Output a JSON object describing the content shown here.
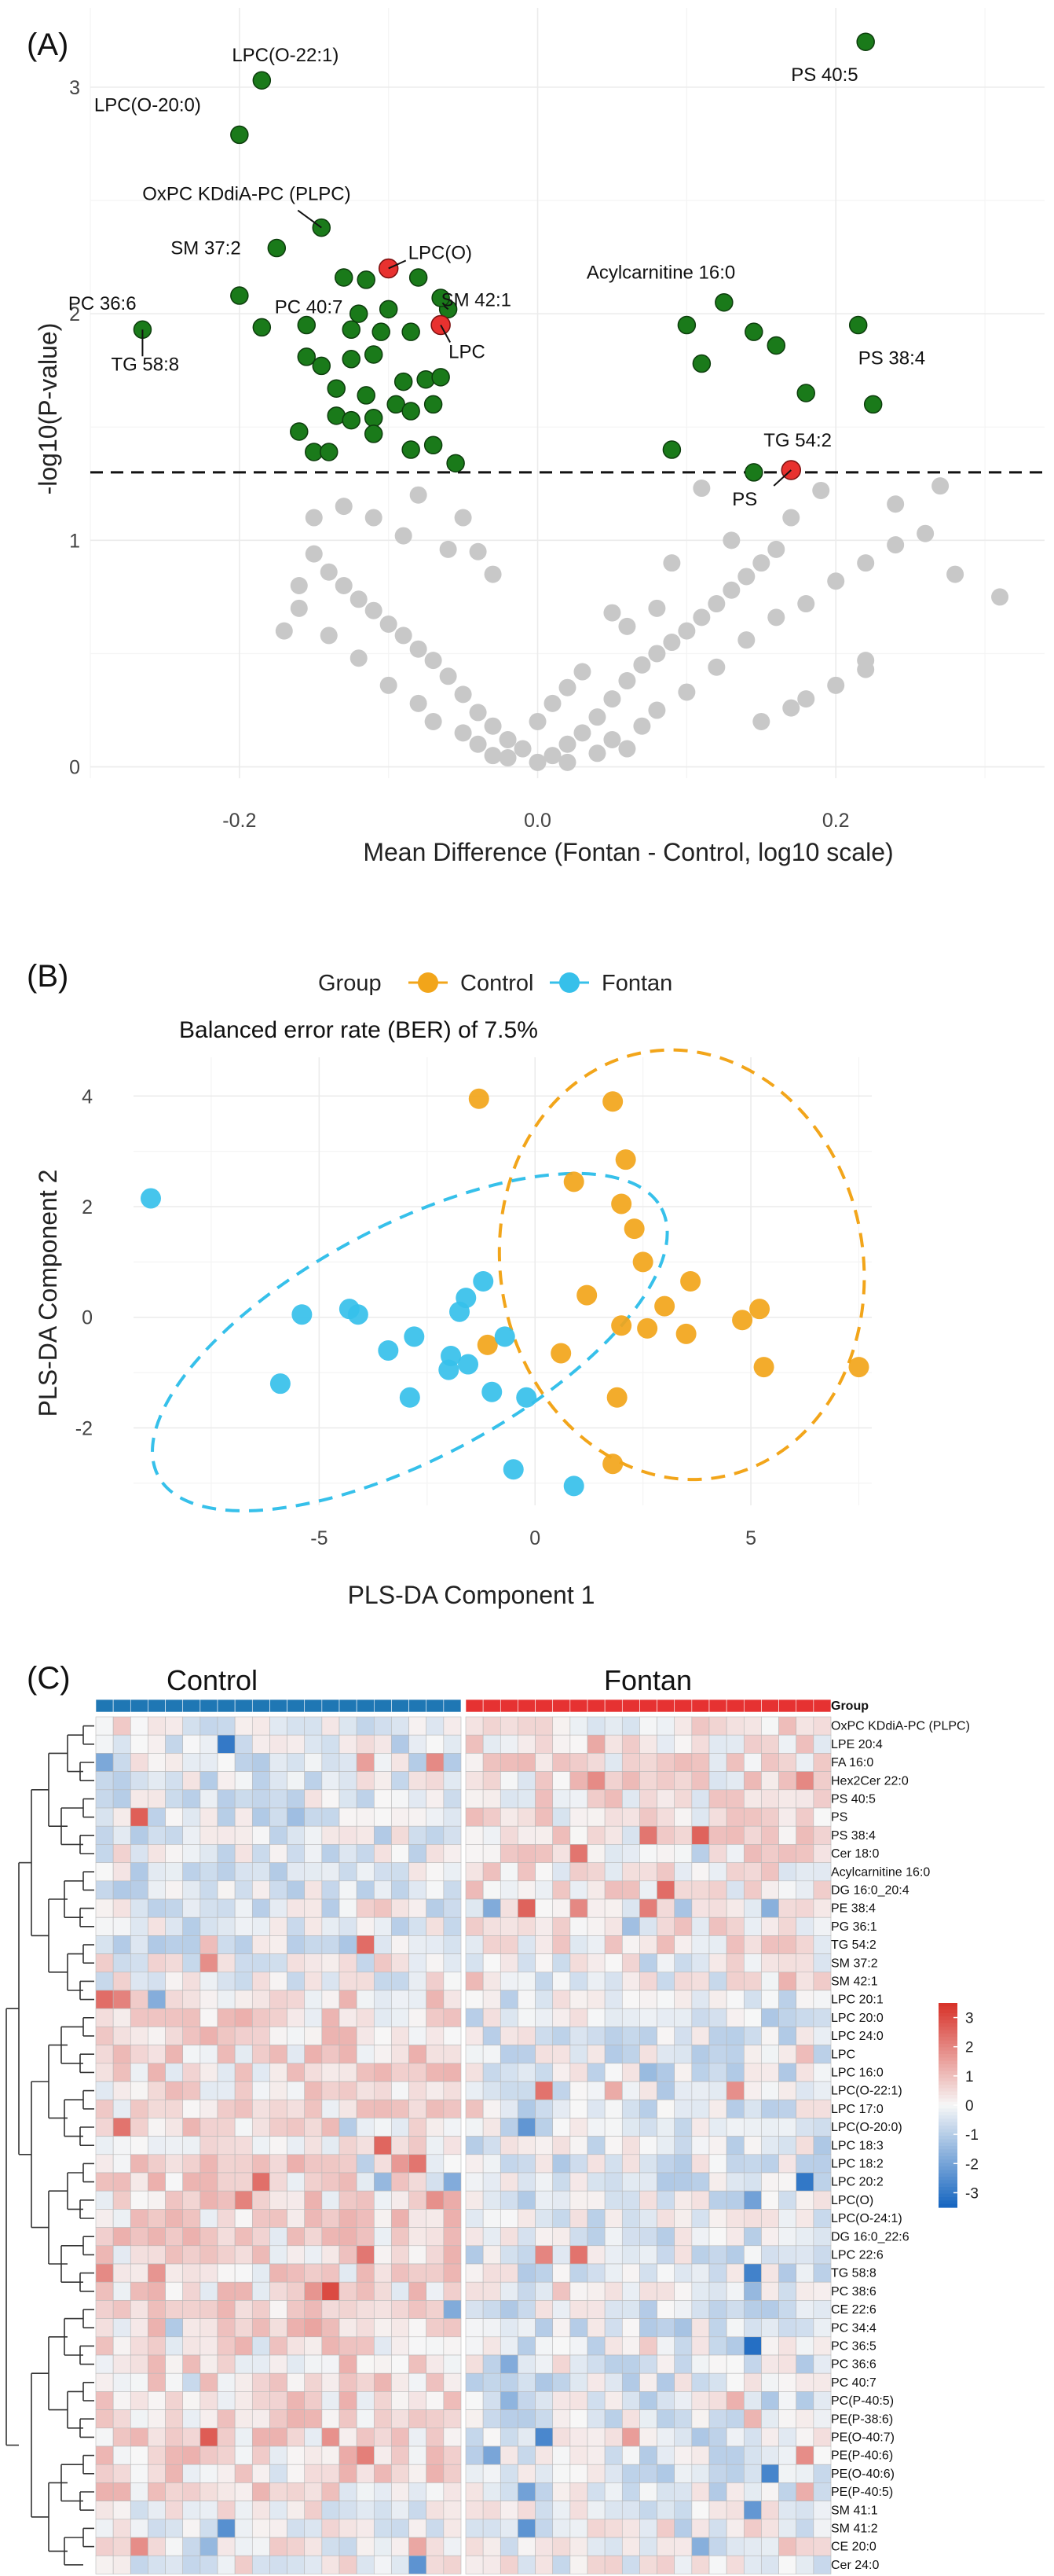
{
  "chart_data": [
    {
      "panel": "(A)",
      "type": "scatter",
      "xlabel": "Mean Difference (Fontan - Control, log10 scale)",
      "ylabel": "-log10(P-value)",
      "xlim": [
        -0.3,
        0.34
      ],
      "ylim": [
        -0.05,
        3.35
      ],
      "xticks": [
        -0.2,
        0,
        0.2
      ],
      "xtick_labels": [
        "-0.2",
        "0.0",
        "0.2"
      ],
      "yticks": [
        0,
        1,
        2,
        3
      ],
      "ytick_labels": [
        "0",
        "1",
        "2",
        "3"
      ],
      "threshold": 1.3,
      "colors": {
        "significant": "#1a7a1a",
        "highlight": "#e8312f",
        "nonsignificant": "#c8c8c8"
      },
      "significant_points": [
        [
          0.22,
          3.2
        ],
        [
          -0.185,
          3.03
        ],
        [
          -0.2,
          2.79
        ],
        [
          -0.145,
          2.38
        ],
        [
          -0.175,
          2.29
        ],
        [
          -0.2,
          2.08
        ],
        [
          -0.13,
          2.16
        ],
        [
          -0.115,
          2.15
        ],
        [
          -0.08,
          2.16
        ],
        [
          -0.1,
          2.02
        ],
        [
          -0.12,
          2.0
        ],
        [
          -0.06,
          2.02
        ],
        [
          -0.065,
          2.07
        ],
        [
          -0.265,
          1.93
        ],
        [
          -0.185,
          1.94
        ],
        [
          -0.155,
          1.95
        ],
        [
          -0.125,
          1.93
        ],
        [
          -0.105,
          1.92
        ],
        [
          -0.085,
          1.92
        ],
        [
          -0.155,
          1.81
        ],
        [
          -0.145,
          1.77
        ],
        [
          -0.125,
          1.8
        ],
        [
          -0.11,
          1.82
        ],
        [
          -0.09,
          1.7
        ],
        [
          -0.075,
          1.71
        ],
        [
          -0.065,
          1.72
        ],
        [
          -0.135,
          1.67
        ],
        [
          -0.115,
          1.64
        ],
        [
          -0.095,
          1.6
        ],
        [
          -0.085,
          1.57
        ],
        [
          -0.07,
          1.6
        ],
        [
          -0.135,
          1.55
        ],
        [
          -0.125,
          1.53
        ],
        [
          -0.11,
          1.54
        ],
        [
          -0.11,
          1.47
        ],
        [
          -0.16,
          1.48
        ],
        [
          -0.15,
          1.39
        ],
        [
          -0.14,
          1.39
        ],
        [
          -0.085,
          1.4
        ],
        [
          -0.07,
          1.42
        ],
        [
          -0.055,
          1.34
        ],
        [
          0.1,
          1.95
        ],
        [
          0.125,
          2.05
        ],
        [
          0.145,
          1.92
        ],
        [
          0.11,
          1.78
        ],
        [
          0.16,
          1.86
        ],
        [
          0.215,
          1.95
        ],
        [
          0.18,
          1.65
        ],
        [
          0.225,
          1.6
        ],
        [
          0.09,
          1.4
        ],
        [
          0.145,
          1.3
        ]
      ],
      "highlight_points": [
        [
          -0.1,
          2.2
        ],
        [
          -0.065,
          1.95
        ],
        [
          0.17,
          1.31
        ]
      ],
      "nonsignificant_points": [
        [
          0.0,
          0.02
        ],
        [
          0.01,
          0.05
        ],
        [
          -0.01,
          0.08
        ],
        [
          0.02,
          0.1
        ],
        [
          -0.02,
          0.12
        ],
        [
          0.03,
          0.15
        ],
        [
          -0.03,
          0.18
        ],
        [
          0.0,
          0.2
        ],
        [
          0.04,
          0.22
        ],
        [
          -0.04,
          0.24
        ],
        [
          0.01,
          0.28
        ],
        [
          0.05,
          0.3
        ],
        [
          -0.05,
          0.32
        ],
        [
          0.02,
          0.35
        ],
        [
          0.06,
          0.38
        ],
        [
          -0.06,
          0.4
        ],
        [
          0.03,
          0.42
        ],
        [
          0.07,
          0.45
        ],
        [
          -0.07,
          0.47
        ],
        [
          0.08,
          0.5
        ],
        [
          -0.08,
          0.52
        ],
        [
          0.09,
          0.55
        ],
        [
          -0.09,
          0.58
        ],
        [
          0.1,
          0.6
        ],
        [
          -0.1,
          0.63
        ],
        [
          0.11,
          0.66
        ],
        [
          -0.11,
          0.69
        ],
        [
          0.12,
          0.72
        ],
        [
          -0.12,
          0.74
        ],
        [
          0.13,
          0.78
        ],
        [
          -0.13,
          0.8
        ],
        [
          0.14,
          0.84
        ],
        [
          -0.14,
          0.86
        ],
        [
          0.15,
          0.9
        ],
        [
          -0.15,
          0.94
        ],
        [
          0.16,
          0.96
        ],
        [
          -0.04,
          0.1
        ],
        [
          0.04,
          0.06
        ],
        [
          -0.02,
          0.04
        ],
        [
          0.02,
          0.02
        ],
        [
          -0.07,
          0.2
        ],
        [
          0.07,
          0.18
        ],
        [
          -0.05,
          0.15
        ],
        [
          0.05,
          0.12
        ],
        [
          0.06,
          0.08
        ],
        [
          -0.03,
          0.05
        ],
        [
          0.08,
          0.25
        ],
        [
          -0.08,
          0.28
        ],
        [
          0.1,
          0.33
        ],
        [
          -0.1,
          0.36
        ],
        [
          0.12,
          0.44
        ],
        [
          -0.12,
          0.48
        ],
        [
          0.14,
          0.56
        ],
        [
          -0.14,
          0.58
        ],
        [
          0.16,
          0.66
        ],
        [
          -0.16,
          0.7
        ],
        [
          0.18,
          0.72
        ],
        [
          0.2,
          0.82
        ],
        [
          0.22,
          0.9
        ],
        [
          0.24,
          0.98
        ],
        [
          0.26,
          1.03
        ],
        [
          0.28,
          0.85
        ],
        [
          0.31,
          0.75
        ],
        [
          0.22,
          0.47
        ],
        [
          0.22,
          0.43
        ],
        [
          0.2,
          0.36
        ],
        [
          0.18,
          0.3
        ],
        [
          0.17,
          0.26
        ],
        [
          0.15,
          0.2
        ],
        [
          -0.17,
          0.6
        ],
        [
          -0.16,
          0.8
        ],
        [
          -0.15,
          1.1
        ],
        [
          -0.13,
          1.15
        ],
        [
          -0.11,
          1.1
        ],
        [
          -0.09,
          1.02
        ],
        [
          -0.08,
          1.2
        ],
        [
          -0.06,
          0.96
        ],
        [
          -0.05,
          1.1
        ],
        [
          -0.04,
          0.95
        ],
        [
          -0.03,
          0.85
        ],
        [
          0.05,
          0.68
        ],
        [
          0.06,
          0.62
        ],
        [
          0.08,
          0.7
        ],
        [
          0.09,
          0.9
        ],
        [
          0.11,
          1.23
        ],
        [
          0.13,
          1.0
        ],
        [
          0.17,
          1.1
        ],
        [
          0.19,
          1.22
        ],
        [
          0.24,
          1.16
        ],
        [
          0.27,
          1.24
        ]
      ],
      "annotations": [
        {
          "text": "LPC(O-22:1)",
          "x": -0.185,
          "y": 3.03
        },
        {
          "text": "LPC(O-20:0)",
          "x": -0.2,
          "y": 2.79
        },
        {
          "text": "PS 40:5",
          "x": 0.22,
          "y": 3.2
        },
        {
          "text": "OxPC KDdiA-PC  (PLPC)",
          "x": -0.145,
          "y": 2.38
        },
        {
          "text": "SM 37:2",
          "x": -0.175,
          "y": 2.29
        },
        {
          "text": "LPC(O)",
          "x": -0.1,
          "y": 2.2
        },
        {
          "text": "Acylcarnitine 16:0",
          "x": 0.125,
          "y": 2.05
        },
        {
          "text": "PC 40:7",
          "x": -0.1,
          "y": 2.02
        },
        {
          "text": "SM 42:1",
          "x": -0.06,
          "y": 2.02
        },
        {
          "text": "PC 36:6",
          "x": -0.2,
          "y": 2.08
        },
        {
          "text": "LPC",
          "x": -0.065,
          "y": 1.95
        },
        {
          "text": "TG 58:8",
          "x": -0.265,
          "y": 1.93
        },
        {
          "text": "PS 38:4",
          "x": 0.215,
          "y": 1.95
        },
        {
          "text": "TG 54:2",
          "x": 0.17,
          "y": 1.31
        },
        {
          "text": "PS",
          "x": 0.17,
          "y": 1.31
        }
      ]
    },
    {
      "panel": "(B)",
      "type": "scatter",
      "title": "Balanced error rate (BER) of 7.5%",
      "legend_title": "Group",
      "xlabel": "PLS-DA Component 1",
      "ylabel": "PLS-DA Component 2",
      "xlim": [
        -9.3,
        7.8
      ],
      "ylim": [
        -3.4,
        4.7
      ],
      "xticks": [
        -5,
        0,
        5
      ],
      "xtick_labels": [
        "-5",
        "0",
        "5"
      ],
      "yticks": [
        -2,
        0,
        2,
        4
      ],
      "ytick_labels": [
        "-2",
        "0",
        "2",
        "4"
      ],
      "series": [
        {
          "name": "Control",
          "color": "#f2a51a",
          "points": [
            [
              -1.3,
              3.95
            ],
            [
              1.8,
              3.9
            ],
            [
              2.1,
              2.85
            ],
            [
              0.9,
              2.45
            ],
            [
              2.0,
              2.05
            ],
            [
              2.3,
              1.6
            ],
            [
              2.5,
              1.0
            ],
            [
              3.6,
              0.65
            ],
            [
              1.2,
              0.4
            ],
            [
              3.0,
              0.2
            ],
            [
              5.2,
              0.15
            ],
            [
              4.8,
              -0.05
            ],
            [
              7.5,
              -0.9
            ],
            [
              5.3,
              -0.9
            ],
            [
              2.6,
              -0.2
            ],
            [
              3.5,
              -0.3
            ],
            [
              2.0,
              -0.15
            ],
            [
              0.6,
              -0.65
            ],
            [
              -1.1,
              -0.5
            ],
            [
              1.9,
              -1.45
            ],
            [
              1.8,
              -2.65
            ]
          ]
        },
        {
          "name": "Fontan",
          "color": "#36c0ea",
          "points": [
            [
              -8.9,
              2.15
            ],
            [
              -1.2,
              0.65
            ],
            [
              -1.6,
              0.35
            ],
            [
              -1.75,
              0.1
            ],
            [
              -4.3,
              0.15
            ],
            [
              -4.1,
              0.05
            ],
            [
              -5.4,
              0.05
            ],
            [
              -2.8,
              -0.35
            ],
            [
              -0.7,
              -0.35
            ],
            [
              -3.4,
              -0.6
            ],
            [
              -1.95,
              -0.7
            ],
            [
              -1.55,
              -0.85
            ],
            [
              -2.0,
              -0.95
            ],
            [
              -1.0,
              -1.35
            ],
            [
              -0.2,
              -1.45
            ],
            [
              -2.9,
              -1.45
            ],
            [
              -5.9,
              -1.2
            ],
            [
              -0.5,
              -2.75
            ],
            [
              0.9,
              -3.05
            ]
          ]
        }
      ],
      "ellipses": [
        {
          "group": "Control",
          "color": "#f2a51a",
          "center": [
            3.4,
            0.95
          ],
          "axes": [
            4.2,
            3.9
          ],
          "angle_deg": -10
        },
        {
          "group": "Fontan",
          "color": "#36c0ea",
          "center": [
            -2.9,
            -0.45
          ],
          "axes": [
            6.6,
            2.1
          ],
          "angle_deg": -28
        }
      ]
    },
    {
      "panel": "(C)",
      "type": "heatmap",
      "groups": [
        {
          "name": "Control",
          "color": "#1f77b4",
          "n": 21
        },
        {
          "name": "Fontan",
          "color": "#e63232",
          "n": 21
        }
      ],
      "group_header": "Group",
      "rows": [
        "OxPC KDdiA-PC  (PLPC)",
        "LPE 20:4",
        "FA 16:0",
        "Hex2Cer 22:0",
        "PS 40:5",
        "PS",
        "PS 38:4",
        "Cer 18:0",
        "Acylcarnitine 16:0",
        "DG 16:0_20:4",
        "PE 38:4",
        "PG 36:1",
        "TG 54:2",
        "SM 37:2",
        "SM 42:1",
        "LPC 20:1",
        "LPC 20:0",
        "LPC 24:0",
        "LPC",
        "LPC 16:0",
        "LPC(O-22:1)",
        "LPC 17:0",
        "LPC(O-20:0)",
        "LPC 18:3",
        "LPC 18:2",
        "LPC 20:2",
        "LPC(O)",
        "LPC(O-24:1)",
        "DG 16:0_22:6",
        "LPC 22:6",
        "TG 58:8",
        "PC 38:6",
        "CE 22:6",
        "PC 34:4",
        "PC 36:5",
        "PC 36:6",
        "PC 40:7",
        "PC(P-40:5)",
        "PE(P-38:6)",
        "PE(O-40:7)",
        "PE(P-40:6)",
        "PE(O-40:6)",
        "PE(P-40:5)",
        "SM 41:1",
        "SM 41:2",
        "CE 20:0",
        "Cer 24:0"
      ],
      "color_scale": {
        "min": -3.5,
        "max": 3.5,
        "ticks": [
          3,
          2,
          1,
          0,
          -1,
          -2,
          -3
        ],
        "tick_labels": [
          "3",
          "2",
          "1",
          "0",
          "-1",
          "-2",
          "-3"
        ],
        "low_color": "#1565c0",
        "mid_color": "#f7f7f7",
        "high_color": "#d73027"
      }
    }
  ]
}
